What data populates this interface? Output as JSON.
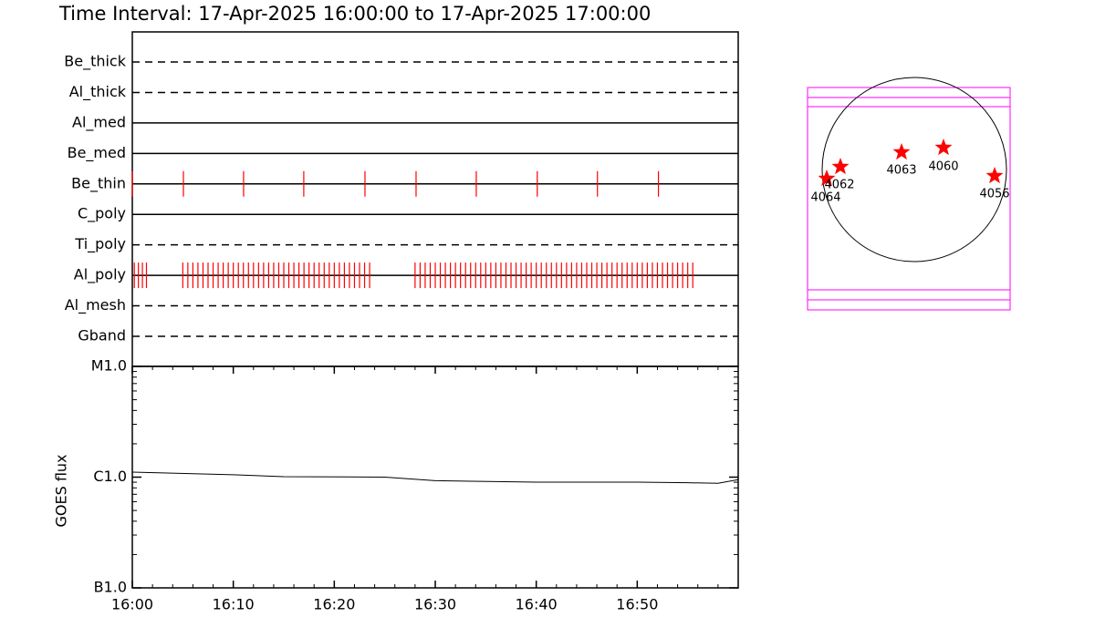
{
  "title": "Time Interval: 17-Apr-2025 16:00:00 to 17-Apr-2025 17:00:00",
  "chart_data": [
    {
      "type": "event",
      "xlim": [
        0,
        60
      ],
      "color": "#ff0000",
      "rows": [
        {
          "name": "Be_thick",
          "style": "dashed",
          "events": []
        },
        {
          "name": "Al_thick",
          "style": "dashed",
          "events": []
        },
        {
          "name": "Al_med",
          "style": "solid",
          "events": []
        },
        {
          "name": "Be_med",
          "style": "solid",
          "events": []
        },
        {
          "name": "Be_thin",
          "style": "solid",
          "events": [
            0,
            5.06,
            11.02,
            16.98,
            23.04,
            28.1,
            34.06,
            40.1,
            46.06,
            52.1
          ]
        },
        {
          "name": "C_poly",
          "style": "solid",
          "events": []
        },
        {
          "name": "Ti_poly",
          "style": "dashed",
          "events": []
        },
        {
          "name": "Al_poly",
          "style": "solid",
          "events": [
            0.2,
            0.6,
            1.0,
            1.4,
            5.0,
            5.5,
            6.0,
            6.5,
            7.0,
            7.5,
            8.0,
            8.5,
            9.0,
            9.5,
            10.0,
            10.5,
            11.0,
            11.5,
            12.0,
            12.5,
            13.0,
            13.5,
            14.0,
            14.5,
            15.0,
            15.5,
            16.0,
            16.5,
            17.0,
            17.5,
            18.0,
            18.5,
            19.0,
            19.5,
            20.0,
            20.5,
            21.0,
            21.5,
            22.0,
            22.5,
            23.0,
            23.5,
            28.0,
            28.5,
            29.0,
            29.5,
            30.0,
            30.5,
            31.0,
            31.5,
            32.0,
            32.5,
            33.0,
            33.5,
            34.0,
            34.5,
            35.0,
            35.5,
            36.0,
            36.5,
            37.0,
            37.5,
            38.0,
            38.5,
            39.0,
            39.5,
            40.0,
            40.5,
            41.0,
            41.5,
            42.0,
            42.5,
            43.0,
            43.5,
            44.0,
            44.5,
            45.0,
            45.5,
            46.0,
            46.5,
            47.0,
            47.5,
            48.0,
            48.5,
            49.0,
            49.5,
            50.0,
            50.5,
            51.0,
            51.5,
            52.0,
            52.5,
            53.0,
            53.5,
            54.0,
            54.5,
            55.0,
            55.5
          ]
        },
        {
          "name": "Al_mesh",
          "style": "dashed",
          "events": []
        },
        {
          "name": "Gband",
          "style": "dashed",
          "events": []
        }
      ]
    },
    {
      "type": "line",
      "ylabel": "GOES flux",
      "log": true,
      "color": "#000000",
      "x": [
        0,
        10,
        15,
        25,
        30,
        40,
        50,
        55,
        58,
        60
      ],
      "values": [
        1.11e-06,
        1.05e-06,
        1.01e-06,
        1e-06,
        9.3e-07,
        9e-07,
        9e-07,
        8.9e-07,
        8.8e-07,
        9.5e-07
      ],
      "xlim": [
        0,
        60
      ],
      "xticks": [
        {
          "value": 0,
          "label": "16:00"
        },
        {
          "value": 10,
          "label": "16:10"
        },
        {
          "value": 20,
          "label": "16:20"
        },
        {
          "value": 30,
          "label": "16:30"
        },
        {
          "value": 40,
          "label": "16:40"
        },
        {
          "value": 50,
          "label": "16:50"
        }
      ],
      "xminorticks": [
        2,
        4,
        6,
        8,
        12,
        14,
        16,
        18,
        22,
        24,
        26,
        28,
        32,
        34,
        36,
        38,
        42,
        44,
        46,
        48,
        52,
        54,
        56,
        58
      ],
      "ylim": [
        1e-07,
        1e-05
      ],
      "yticks": [
        {
          "value": 1e-05,
          "label": "M1.0"
        },
        {
          "value": 1e-06,
          "label": "C1.0"
        },
        {
          "value": 1e-07,
          "label": "B1.0"
        }
      ],
      "yminorticks": [
        2e-07,
        3e-07,
        4e-07,
        5e-07,
        6e-07,
        7e-07,
        8e-07,
        9e-07,
        2e-06,
        3e-06,
        4e-06,
        5e-06,
        6e-06,
        7e-06,
        8e-06,
        9e-06
      ]
    }
  ],
  "map": {
    "color": "#ff0000",
    "frame_color": "#ff00ff",
    "regions": [
      {
        "label": "4064"
      },
      {
        "label": "4062"
      },
      {
        "label": "4063"
      },
      {
        "label": "4060"
      },
      {
        "label": "4056"
      }
    ]
  }
}
